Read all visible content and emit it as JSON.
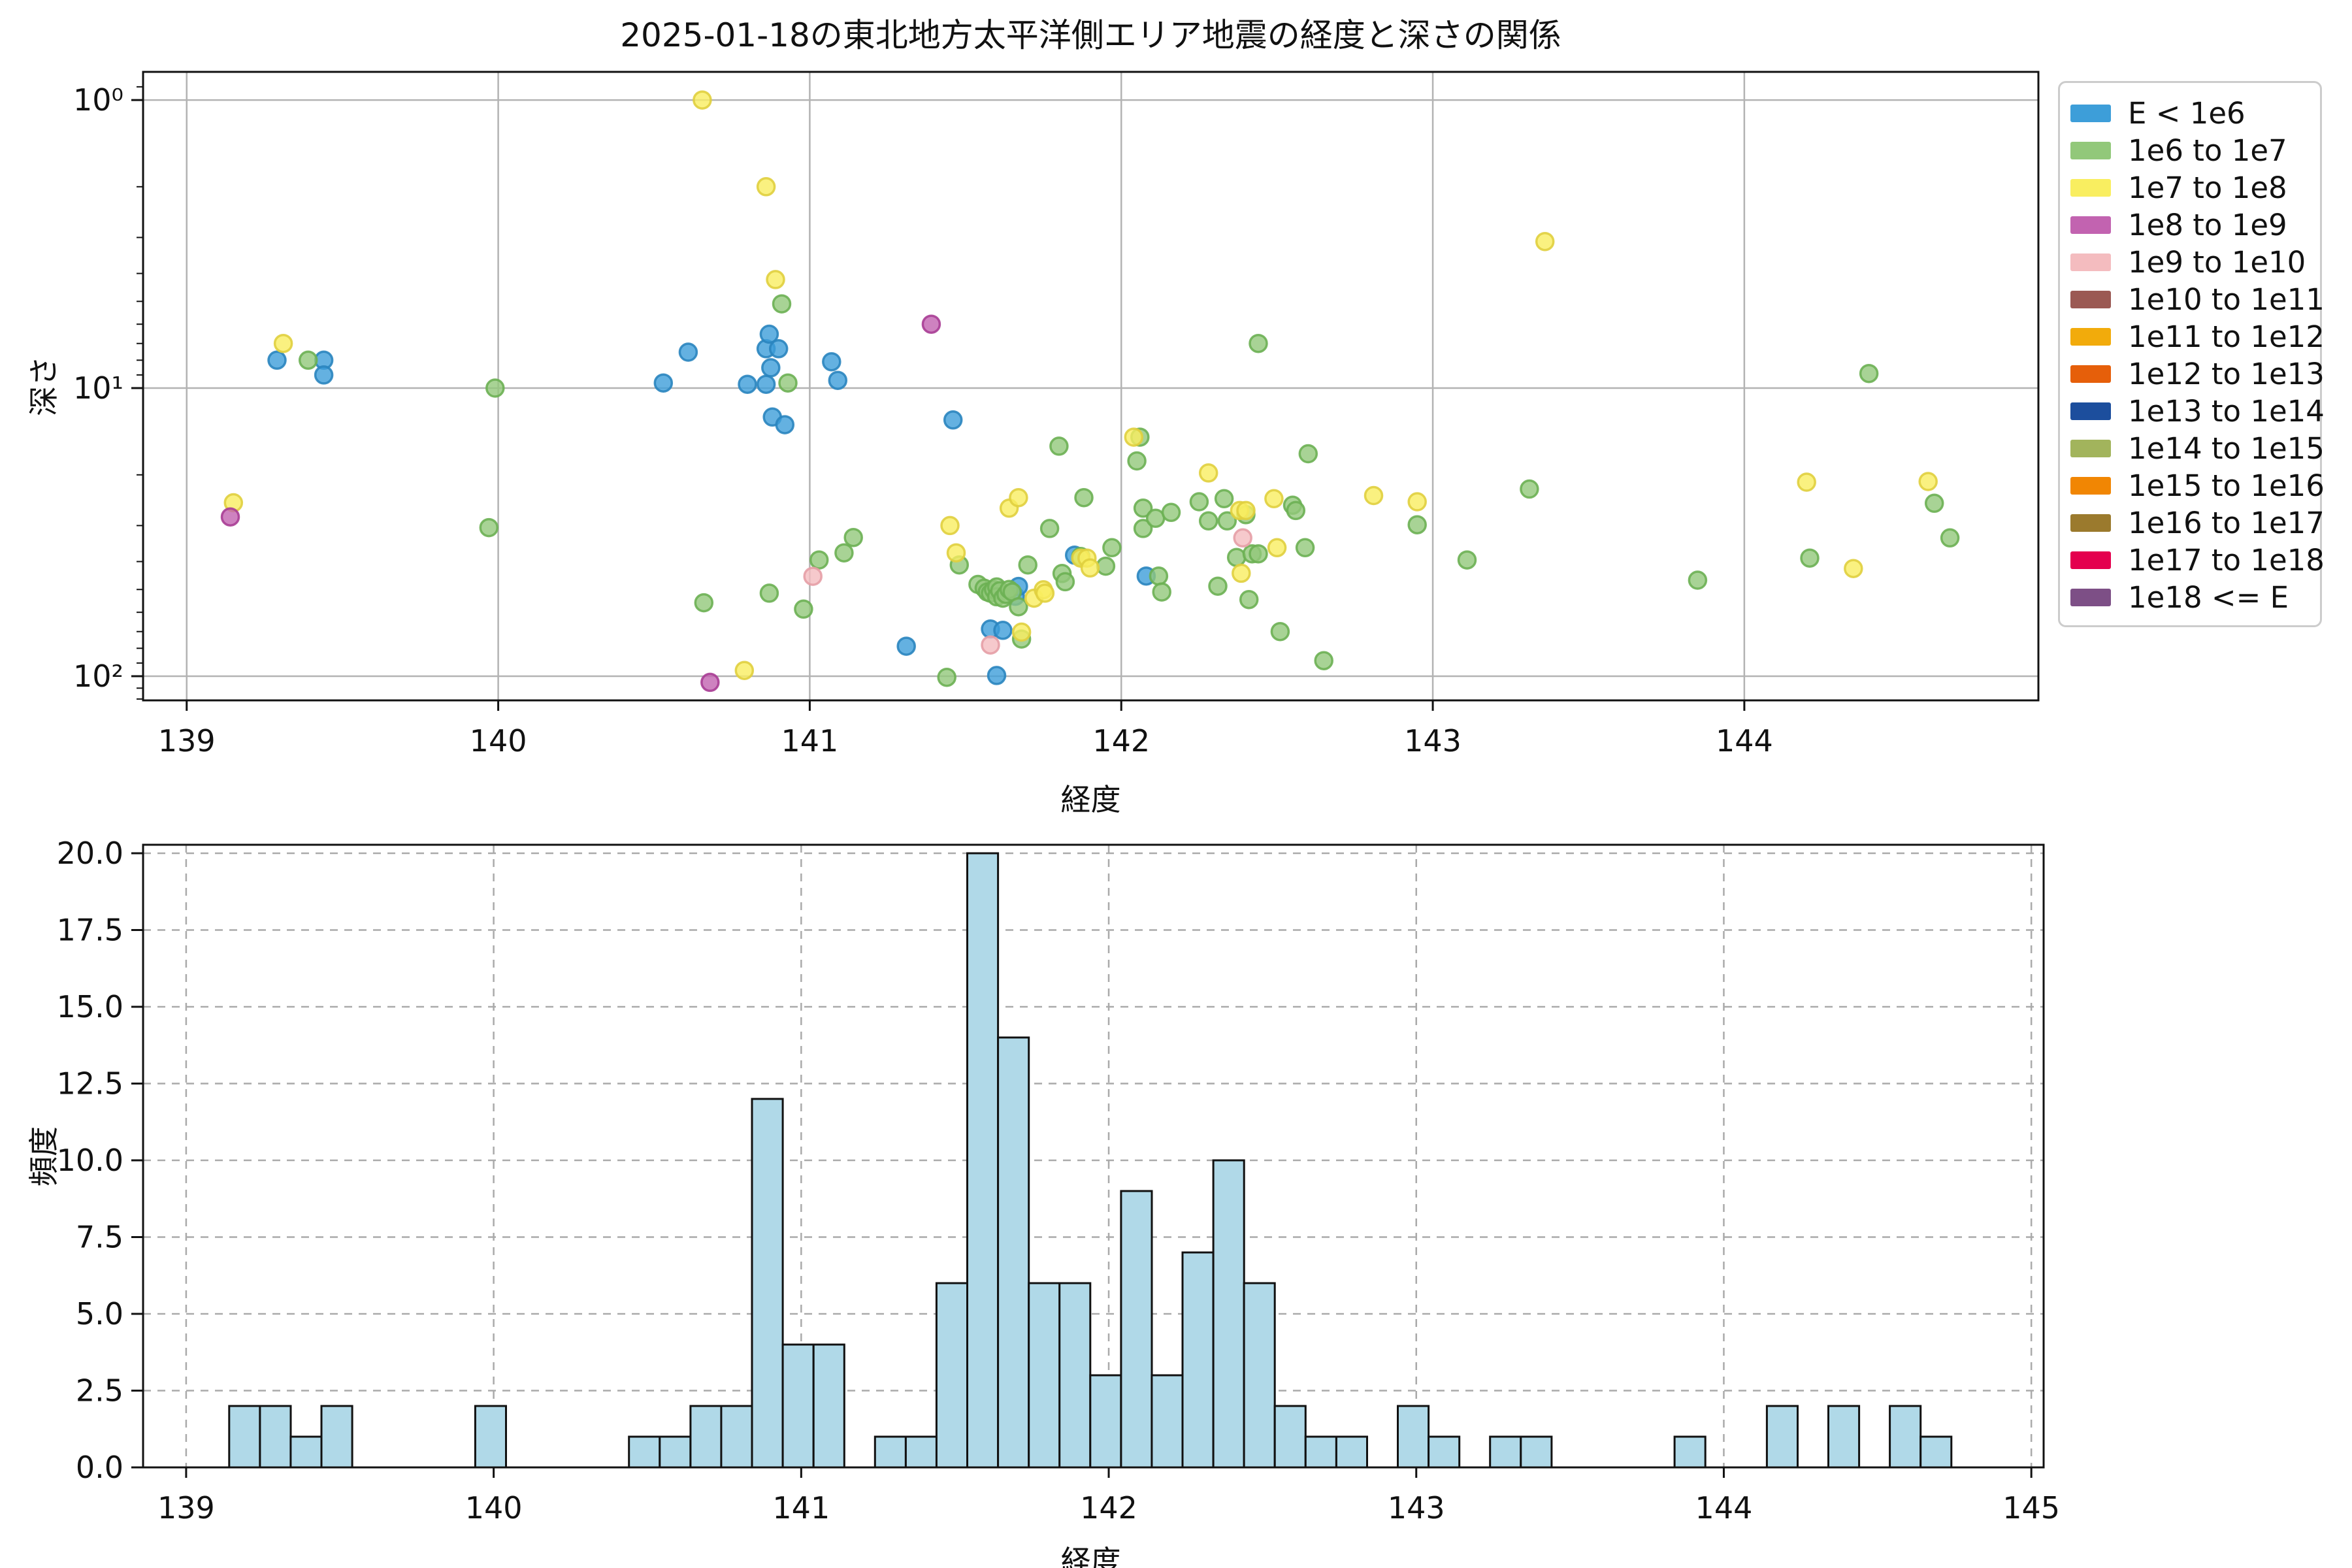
{
  "title": "2025-01-18の東北地方太平洋側エリア地震の経度と深さの関係",
  "scatter": {
    "xlabel": "経度",
    "ylabel": "深さ",
    "x_ticks": [
      139,
      140,
      141,
      142,
      143,
      144
    ],
    "y_tick_values": [
      1,
      10,
      100
    ],
    "y_tick_labels": [
      "10⁰",
      "10¹",
      "10²"
    ]
  },
  "histogram": {
    "xlabel": "経度",
    "ylabel": "頻度",
    "x_ticks": [
      139,
      140,
      141,
      142,
      143,
      144,
      145
    ],
    "y_tick_values": [
      0,
      2.5,
      5,
      7.5,
      10,
      12.5,
      15,
      17.5,
      20
    ]
  },
  "legend": {
    "items": [
      {
        "label": "E < 1e6",
        "color": "#3d9ed9",
        "edge": "#2a85bf"
      },
      {
        "label": "1e6 to 1e7",
        "color": "#92c87a",
        "edge": "#6cb053"
      },
      {
        "label": "1e7 to 1e8",
        "color": "#f9ee60",
        "edge": "#e0cf3e"
      },
      {
        "label": "1e8 to 1e9",
        "color": "#c263b0",
        "edge": "#a93d95"
      },
      {
        "label": "1e9 to 1e10",
        "color": "#f4bcbf",
        "edge": "#e59ea6"
      },
      {
        "label": "1e10 to 1e11",
        "color": "#9b5953",
        "edge": "#7d423d"
      },
      {
        "label": "1e11 to 1e12",
        "color": "#f2ab0b",
        "edge": "#cf8c00"
      },
      {
        "label": "1e12 to 1e13",
        "color": "#e65f0a",
        "edge": "#c24a00"
      },
      {
        "label": "1e13 to 1e14",
        "color": "#1c4e9d",
        "edge": "#123a7a"
      },
      {
        "label": "1e14 to 1e15",
        "color": "#a2b45c",
        "edge": "#84983e"
      },
      {
        "label": "1e15 to 1e16",
        "color": "#f18603",
        "edge": "#cc6e00"
      },
      {
        "label": "1e16 to 1e17",
        "color": "#9b7a2d",
        "edge": "#7c5f1e"
      },
      {
        "label": "1e17 to 1e18",
        "color": "#e4004e",
        "edge": "#b8003c"
      },
      {
        "label": "1e18 <= E",
        "color": "#7d4f86",
        "edge": "#623a6b"
      }
    ]
  },
  "chart_data": [
    {
      "type": "scatter",
      "title": "2025-01-18の東北地方太平洋側エリア地震の経度と深さの関係",
      "xlabel": "経度",
      "ylabel": "深さ",
      "xlim": [
        138.86,
        144.944
      ],
      "ylim": [
        0.7986,
        121.3
      ],
      "y_scale": "log",
      "y_inverted": true,
      "grid": "solid",
      "legend_position": "outside-right",
      "series": [
        {
          "name": "E < 1e6",
          "color": "#3d9ed9",
          "edge": "#2a85bf",
          "points": [
            [
              139.29,
              8.0
            ],
            [
              139.44,
              8.0
            ],
            [
              139.44,
              9.0
            ],
            [
              140.53,
              9.6
            ],
            [
              140.61,
              7.5
            ],
            [
              140.8,
              9.7
            ],
            [
              140.86,
              7.3
            ],
            [
              140.86,
              9.7
            ],
            [
              140.87,
              6.5
            ],
            [
              140.875,
              8.5
            ],
            [
              140.9,
              7.3
            ],
            [
              140.88,
              12.6
            ],
            [
              140.92,
              13.4
            ],
            [
              141.07,
              8.1
            ],
            [
              141.09,
              9.4
            ],
            [
              141.31,
              78.7
            ],
            [
              141.46,
              12.9
            ],
            [
              141.58,
              68.6
            ],
            [
              141.6,
              99.4
            ],
            [
              141.62,
              69.3
            ],
            [
              141.66,
              52.8
            ],
            [
              141.67,
              48.8
            ],
            [
              141.85,
              38.0
            ],
            [
              142.08,
              44.9
            ]
          ]
        },
        {
          "name": "1e6 to 1e7",
          "color": "#92c87a",
          "edge": "#6cb053",
          "points": [
            [
              139.39,
              8.0
            ],
            [
              139.99,
              10.0
            ],
            [
              139.97,
              30.5
            ],
            [
              140.66,
              55.6
            ],
            [
              140.87,
              51.5
            ],
            [
              140.91,
              5.1
            ],
            [
              140.93,
              9.6
            ],
            [
              140.98,
              58.5
            ],
            [
              141.03,
              39.5
            ],
            [
              141.11,
              37.3
            ],
            [
              141.14,
              33.0
            ],
            [
              141.44,
              100.9
            ],
            [
              141.48,
              41.1
            ],
            [
              141.54,
              48.0
            ],
            [
              141.56,
              49.5
            ],
            [
              141.57,
              51.0
            ],
            [
              141.58,
              51.5
            ],
            [
              141.59,
              50.0
            ],
            [
              141.6,
              49.0
            ],
            [
              141.6,
              53.0
            ],
            [
              141.61,
              50.5
            ],
            [
              141.62,
              53.6
            ],
            [
              141.63,
              52.0
            ],
            [
              141.64,
              50.0
            ],
            [
              141.65,
              51.0
            ],
            [
              141.67,
              57.4
            ],
            [
              141.68,
              74.3
            ],
            [
              141.7,
              41.1
            ],
            [
              141.77,
              30.7
            ],
            [
              141.8,
              15.9
            ],
            [
              141.81,
              44.0
            ],
            [
              141.82,
              47.0
            ],
            [
              141.87,
              38.4
            ],
            [
              141.88,
              24.0
            ],
            [
              141.95,
              41.5
            ],
            [
              141.97,
              35.8
            ],
            [
              142.05,
              17.9
            ],
            [
              142.06,
              14.8
            ],
            [
              142.07,
              26.1
            ],
            [
              142.07,
              30.7
            ],
            [
              142.11,
              28.3
            ],
            [
              142.12,
              44.9
            ],
            [
              142.13,
              51.0
            ],
            [
              142.16,
              27.0
            ],
            [
              142.25,
              24.8
            ],
            [
              142.28,
              28.9
            ],
            [
              142.31,
              48.7
            ],
            [
              142.33,
              24.2
            ],
            [
              142.34,
              28.9
            ],
            [
              142.37,
              38.7
            ],
            [
              142.4,
              27.5
            ],
            [
              142.41,
              54.2
            ],
            [
              142.42,
              37.6
            ],
            [
              142.44,
              7.0
            ],
            [
              142.44,
              37.6
            ],
            [
              142.51,
              70.0
            ],
            [
              142.55,
              25.5
            ],
            [
              142.56,
              26.6
            ],
            [
              142.6,
              16.9
            ],
            [
              142.59,
              35.8
            ],
            [
              142.65,
              88.3
            ],
            [
              142.95,
              29.8
            ],
            [
              143.11,
              39.5
            ],
            [
              143.31,
              22.4
            ],
            [
              143.85,
              46.4
            ],
            [
              144.21,
              38.9
            ],
            [
              144.4,
              8.9
            ],
            [
              144.61,
              25.1
            ],
            [
              144.66,
              33.1
            ]
          ]
        },
        {
          "name": "1e7 to 1e8",
          "color": "#f9ee60",
          "edge": "#e0cf3e",
          "points": [
            [
              139.15,
              25.0
            ],
            [
              139.31,
              7.0
            ],
            [
              140.655,
              1.0
            ],
            [
              140.79,
              95.5
            ],
            [
              140.86,
              2.0
            ],
            [
              140.89,
              4.2
            ],
            [
              141.45,
              30.0
            ],
            [
              141.47,
              37.3
            ],
            [
              141.64,
              26.1
            ],
            [
              141.67,
              24.0
            ],
            [
              141.68,
              70.3
            ],
            [
              141.72,
              53.6
            ],
            [
              141.75,
              50.1
            ],
            [
              141.755,
              51.5
            ],
            [
              141.87,
              38.9
            ],
            [
              141.89,
              38.9
            ],
            [
              141.9,
              42.1
            ],
            [
              142.04,
              14.8
            ],
            [
              142.28,
              19.7
            ],
            [
              142.38,
              26.6
            ],
            [
              142.4,
              26.6
            ],
            [
              142.385,
              43.9
            ],
            [
              142.49,
              24.2
            ],
            [
              142.5,
              35.8
            ],
            [
              142.81,
              23.6
            ],
            [
              142.95,
              24.8
            ],
            [
              143.36,
              3.1
            ],
            [
              144.2,
              21.2
            ],
            [
              144.35,
              42.3
            ],
            [
              144.59,
              21.1
            ]
          ]
        },
        {
          "name": "1e8 to 1e9",
          "color": "#c263b0",
          "edge": "#a93d95",
          "points": [
            [
              139.14,
              28.0
            ],
            [
              140.68,
              105.0
            ],
            [
              141.39,
              6.0
            ]
          ]
        },
        {
          "name": "1e9 to 1e10",
          "color": "#f4bcbf",
          "edge": "#e59ea6",
          "points": [
            [
              141.01,
              45.0
            ],
            [
              141.58,
              77.9
            ],
            [
              142.39,
              33.1
            ]
          ]
        },
        {
          "name": "1e10 to 1e11",
          "color": "#9b5953",
          "edge": "#7d423d",
          "points": []
        },
        {
          "name": "1e11 to 1e12",
          "color": "#f2ab0b",
          "edge": "#cf8c00",
          "points": []
        },
        {
          "name": "1e12 to 1e13",
          "color": "#e65f0a",
          "edge": "#c24a00",
          "points": []
        },
        {
          "name": "1e13 to 1e14",
          "color": "#1c4e9d",
          "edge": "#123a7a",
          "points": []
        },
        {
          "name": "1e14 to 1e15",
          "color": "#a2b45c",
          "edge": "#84983e",
          "points": []
        },
        {
          "name": "1e15 to 1e16",
          "color": "#f18603",
          "edge": "#cc6e00",
          "points": []
        },
        {
          "name": "1e16 to 1e17",
          "color": "#9b7a2d",
          "edge": "#7c5f1e",
          "points": []
        },
        {
          "name": "1e17 to 1e18",
          "color": "#e4004e",
          "edge": "#b8003c",
          "points": []
        },
        {
          "name": "1e18 <= E",
          "color": "#7d4f86",
          "edge": "#623a6b",
          "points": []
        }
      ]
    },
    {
      "type": "bar",
      "xlabel": "経度",
      "ylabel": "頻度",
      "xlim": [
        138.86,
        145.04
      ],
      "ylim": [
        0,
        20.277
      ],
      "grid": "dashed",
      "bar_color": "#b0d9e8",
      "bar_edge": "#111111",
      "bin_start": 139.14,
      "bin_width": 0.1,
      "counts": [
        2,
        2,
        1,
        2,
        0,
        0,
        0,
        0,
        2,
        0,
        0,
        0,
        0,
        1,
        1,
        2,
        2,
        12,
        4,
        4,
        0,
        1,
        1,
        6,
        20,
        14,
        6,
        6,
        3,
        9,
        3,
        7,
        10,
        6,
        2,
        1,
        1,
        0,
        2,
        1,
        0,
        1,
        1,
        0,
        0,
        0,
        0,
        1,
        0,
        0,
        2,
        0,
        2,
        0,
        2,
        1
      ]
    }
  ]
}
